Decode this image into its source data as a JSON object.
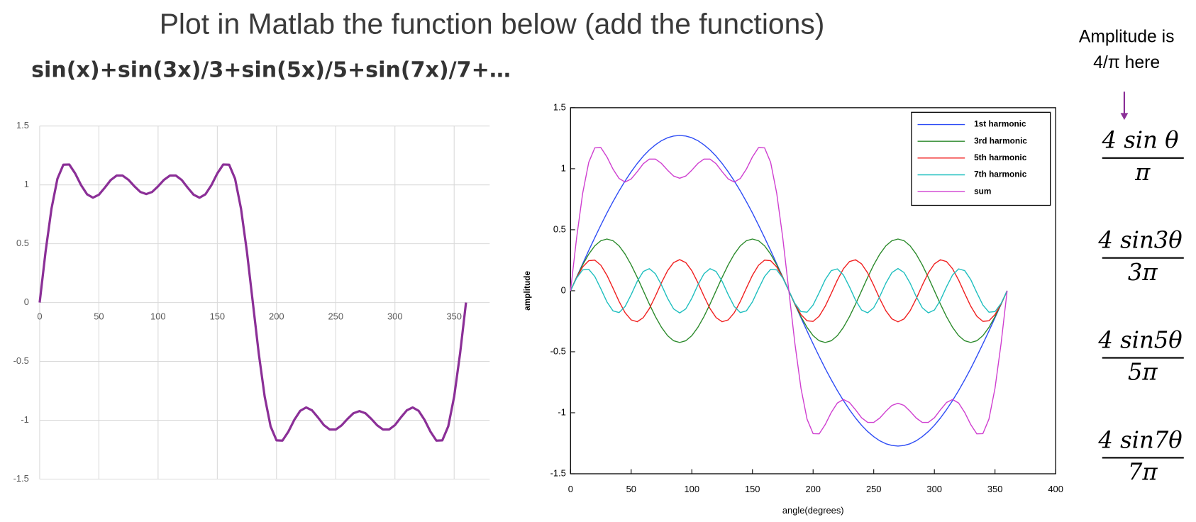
{
  "slide": {
    "title": "Plot in Matlab the function below (add the functions)",
    "formula": "sin(x)+sin(3x)/3+sin(5x)/5+sin(7x)/7+…",
    "note": [
      "Amplitude is",
      "4/π here"
    ],
    "fractions": [
      {
        "numerator": "4 sin θ",
        "denominator": "π"
      },
      {
        "numerator": "4 sin3θ",
        "denominator": "3π"
      },
      {
        "numerator": "4 sin5θ",
        "denominator": "5π"
      },
      {
        "numerator": "4 sin7θ",
        "denominator": "7π"
      }
    ]
  },
  "chart_data": [
    {
      "type": "line",
      "grid": true,
      "xlim": [
        0,
        380
      ],
      "xticks": [
        0,
        50,
        100,
        150,
        200,
        250,
        300,
        350
      ],
      "ylim": [
        -1.5,
        1.5
      ],
      "yticks": [
        -1.5,
        -1,
        -0.5,
        0,
        0.5,
        1,
        1.5
      ],
      "x": [
        0,
        5,
        10,
        15,
        20,
        25,
        30,
        35,
        40,
        45,
        50,
        55,
        60,
        65,
        70,
        75,
        80,
        85,
        90,
        95,
        100,
        105,
        110,
        115,
        120,
        125,
        130,
        135,
        140,
        145,
        150,
        155,
        160,
        165,
        170,
        175,
        180,
        185,
        190,
        195,
        200,
        205,
        210,
        215,
        220,
        225,
        230,
        235,
        240,
        245,
        250,
        255,
        260,
        265,
        270,
        275,
        280,
        285,
        290,
        295,
        300,
        305,
        310,
        315,
        320,
        325,
        330,
        335,
        340,
        345,
        350,
        355,
        360
      ],
      "series": [
        {
          "color": "#8b2f97",
          "values": [
            0,
            0.433,
            0.799,
            1.052,
            1.171,
            1.173,
            1.097,
            0.997,
            0.92,
            0.891,
            0.916,
            0.976,
            1.041,
            1.079,
            1.079,
            1.043,
            0.988,
            0.94,
            0.922,
            0.94,
            0.988,
            1.043,
            1.079,
            1.079,
            1.041,
            0.976,
            0.916,
            0.891,
            0.92,
            0.997,
            1.097,
            1.173,
            1.171,
            1.052,
            0.799,
            0.433,
            0,
            -0.433,
            -0.799,
            -1.052,
            -1.171,
            -1.173,
            -1.097,
            -0.997,
            -0.92,
            -0.891,
            -0.916,
            -0.976,
            -1.041,
            -1.079,
            -1.079,
            -1.043,
            -0.988,
            -0.94,
            -0.922,
            -0.94,
            -0.988,
            -1.043,
            -1.079,
            -1.079,
            -1.041,
            -0.976,
            -0.916,
            -0.891,
            -0.92,
            -0.997,
            -1.097,
            -1.173,
            -1.171,
            -1.052,
            -0.799,
            -0.433,
            0
          ]
        }
      ]
    },
    {
      "type": "line",
      "grid": false,
      "frame": true,
      "legend": "upper right",
      "xlabel": "angle(degrees)",
      "ylabel": "amplitude",
      "xlim": [
        0,
        400
      ],
      "xticks": [
        0,
        50,
        100,
        150,
        200,
        250,
        300,
        350,
        400
      ],
      "ylim": [
        -1.5,
        1.5
      ],
      "yticks": [
        -1.5,
        -1,
        -0.5,
        0,
        0.5,
        1,
        1.5
      ],
      "x": [
        0,
        5,
        10,
        15,
        20,
        25,
        30,
        35,
        40,
        45,
        50,
        55,
        60,
        65,
        70,
        75,
        80,
        85,
        90,
        95,
        100,
        105,
        110,
        115,
        120,
        125,
        130,
        135,
        140,
        145,
        150,
        155,
        160,
        165,
        170,
        175,
        180,
        185,
        190,
        195,
        200,
        205,
        210,
        215,
        220,
        225,
        230,
        235,
        240,
        245,
        250,
        255,
        260,
        265,
        270,
        275,
        280,
        285,
        290,
        295,
        300,
        305,
        310,
        315,
        320,
        325,
        330,
        335,
        340,
        345,
        350,
        355,
        360
      ],
      "series": [
        {
          "name": "1st harmonic",
          "color": "#2d4cf5",
          "values": [
            0,
            0.111,
            0.221,
            0.33,
            0.435,
            0.538,
            0.637,
            0.73,
            0.818,
            0.9,
            0.975,
            1.043,
            1.103,
            1.154,
            1.196,
            1.23,
            1.254,
            1.268,
            1.273,
            1.268,
            1.254,
            1.23,
            1.196,
            1.154,
            1.103,
            1.043,
            0.975,
            0.9,
            0.818,
            0.73,
            0.637,
            0.538,
            0.435,
            0.33,
            0.221,
            0.111,
            0,
            -0.111,
            -0.221,
            -0.33,
            -0.435,
            -0.538,
            -0.637,
            -0.73,
            -0.818,
            -0.9,
            -0.975,
            -1.043,
            -1.103,
            -1.154,
            -1.196,
            -1.23,
            -1.254,
            -1.268,
            -1.273,
            -1.268,
            -1.254,
            -1.23,
            -1.196,
            -1.154,
            -1.103,
            -1.043,
            -0.975,
            -0.9,
            -0.818,
            -0.73,
            -0.637,
            -0.538,
            -0.435,
            -0.33,
            -0.221,
            -0.111,
            0
          ]
        },
        {
          "name": "3rd harmonic",
          "color": "#2b8a2b",
          "values": [
            0,
            0.11,
            0.212,
            0.3,
            0.368,
            0.41,
            0.424,
            0.41,
            0.368,
            0.3,
            0.212,
            0.11,
            0,
            -0.11,
            -0.212,
            -0.3,
            -0.368,
            -0.41,
            -0.424,
            -0.41,
            -0.368,
            -0.3,
            -0.212,
            -0.11,
            0,
            0.11,
            0.212,
            0.3,
            0.368,
            0.41,
            0.424,
            0.41,
            0.368,
            0.3,
            0.212,
            0.11,
            0,
            -0.11,
            -0.212,
            -0.3,
            -0.368,
            -0.41,
            -0.424,
            -0.41,
            -0.368,
            -0.3,
            -0.212,
            -0.11,
            0,
            0.11,
            0.212,
            0.3,
            0.368,
            0.41,
            0.424,
            0.41,
            0.368,
            0.3,
            0.212,
            0.11,
            0,
            -0.11,
            -0.212,
            -0.3,
            -0.368,
            -0.41,
            -0.424,
            -0.41,
            -0.368,
            -0.3,
            -0.212,
            -0.11,
            0
          ]
        },
        {
          "name": "5th harmonic",
          "color": "#f02020",
          "values": [
            0,
            0.108,
            0.195,
            0.246,
            0.251,
            0.209,
            0.127,
            0.022,
            -0.087,
            -0.18,
            -0.239,
            -0.254,
            -0.22,
            -0.146,
            -0.044,
            0.066,
            0.164,
            0.231,
            0.255,
            0.231,
            0.164,
            0.066,
            -0.044,
            -0.146,
            -0.22,
            -0.254,
            -0.239,
            -0.18,
            -0.087,
            0.022,
            0.127,
            0.209,
            0.251,
            0.246,
            0.195,
            0.108,
            0,
            -0.108,
            -0.195,
            -0.246,
            -0.251,
            -0.209,
            -0.127,
            -0.022,
            0.087,
            0.18,
            0.239,
            0.254,
            0.22,
            0.146,
            0.044,
            -0.066,
            -0.164,
            -0.231,
            -0.255,
            -0.231,
            -0.164,
            -0.066,
            0.044,
            0.146,
            0.22,
            0.254,
            0.239,
            0.18,
            0.087,
            -0.022,
            -0.127,
            -0.209,
            -0.251,
            -0.246,
            -0.195,
            -0.108,
            0
          ]
        },
        {
          "name": "7th harmonic",
          "color": "#1fbfbf",
          "values": [
            0,
            0.104,
            0.171,
            0.176,
            0.117,
            0.016,
            -0.091,
            -0.165,
            -0.179,
            -0.129,
            -0.032,
            0.077,
            0.158,
            0.181,
            0.139,
            0.047,
            -0.062,
            -0.149,
            -0.182,
            -0.149,
            -0.062,
            0.047,
            0.139,
            0.181,
            0.158,
            0.077,
            -0.032,
            -0.129,
            -0.179,
            -0.165,
            -0.091,
            0.016,
            0.117,
            0.176,
            0.171,
            0.104,
            0,
            -0.104,
            -0.171,
            -0.176,
            -0.117,
            -0.016,
            0.091,
            0.165,
            0.179,
            0.129,
            0.032,
            -0.077,
            -0.158,
            -0.181,
            -0.139,
            -0.047,
            0.062,
            0.149,
            0.182,
            0.149,
            0.062,
            -0.047,
            -0.139,
            -0.181,
            -0.158,
            -0.077,
            0.032,
            0.129,
            0.179,
            0.165,
            0.091,
            -0.016,
            -0.117,
            -0.176,
            -0.171,
            -0.104,
            0
          ]
        },
        {
          "name": "sum",
          "color": "#cf3fd0",
          "values": [
            0,
            0.433,
            0.799,
            1.052,
            1.171,
            1.173,
            1.097,
            0.997,
            0.92,
            0.891,
            0.916,
            0.976,
            1.041,
            1.079,
            1.079,
            1.043,
            0.988,
            0.94,
            0.922,
            0.94,
            0.988,
            1.043,
            1.079,
            1.079,
            1.041,
            0.976,
            0.916,
            0.891,
            0.92,
            0.997,
            1.097,
            1.173,
            1.171,
            1.052,
            0.799,
            0.433,
            0,
            -0.433,
            -0.799,
            -1.052,
            -1.171,
            -1.173,
            -1.097,
            -0.997,
            -0.92,
            -0.891,
            -0.916,
            -0.976,
            -1.041,
            -1.079,
            -1.079,
            -1.043,
            -0.988,
            -0.94,
            -0.922,
            -0.94,
            -0.988,
            -1.043,
            -1.079,
            -1.079,
            -1.041,
            -0.976,
            -0.916,
            -0.891,
            -0.92,
            -0.997,
            -1.097,
            -1.173,
            -1.171,
            -1.052,
            -0.799,
            -0.433,
            0
          ]
        }
      ]
    }
  ]
}
